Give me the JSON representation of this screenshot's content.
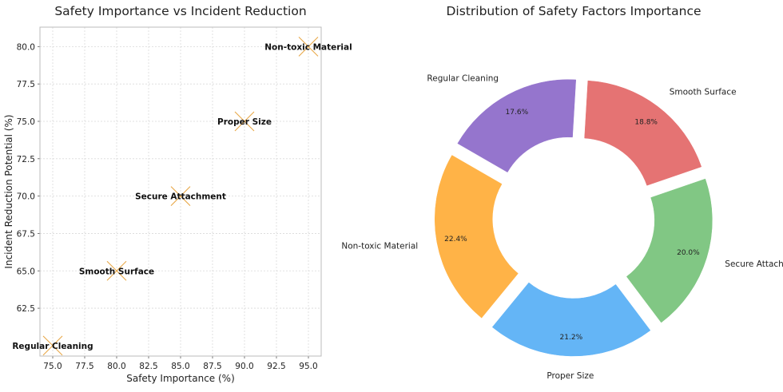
{
  "chart_data": [
    {
      "type": "scatter",
      "title": "Safety Importance vs Incident Reduction",
      "xlabel": "Safety Importance (%)",
      "ylabel": "Incident Reduction Potential (%)",
      "xlim": [
        74.0,
        96.0
      ],
      "ylim": [
        59.3,
        81.3
      ],
      "xticks": [
        75.0,
        77.5,
        80.0,
        82.5,
        85.0,
        87.5,
        90.0,
        92.5,
        95.0
      ],
      "yticks": [
        62.5,
        65.0,
        67.5,
        70.0,
        72.5,
        75.0,
        77.5,
        80.0
      ],
      "xtick_labels": [
        "75.0",
        "77.5",
        "80.0",
        "82.5",
        "85.0",
        "87.5",
        "90.0",
        "92.5",
        "95.0"
      ],
      "ytick_labels": [
        "62.5",
        "65.0",
        "67.5",
        "70.0",
        "72.5",
        "75.0",
        "77.5",
        "80.0"
      ],
      "grid": true,
      "marker_color": "#e8a848",
      "points": [
        {
          "label": "Regular Cleaning",
          "x": 75,
          "y": 60
        },
        {
          "label": "Smooth Surface",
          "x": 80,
          "y": 65
        },
        {
          "label": "Secure Attachment",
          "x": 85,
          "y": 70
        },
        {
          "label": "Proper Size",
          "x": 90,
          "y": 75
        },
        {
          "label": "Non-toxic Material",
          "x": 95,
          "y": 80
        }
      ]
    },
    {
      "type": "pie",
      "title": "Distribution of Safety Factors Importance",
      "donut": true,
      "exploded": true,
      "slices": [
        {
          "label": "Non-toxic Material",
          "pct_label": "22.4%",
          "value": 22.4,
          "color": "#ffb347"
        },
        {
          "label": "Proper Size",
          "pct_label": "21.2%",
          "value": 21.2,
          "color": "#64b5f6"
        },
        {
          "label": "Secure Attachment",
          "pct_label": "20.0%",
          "value": 20.0,
          "color": "#81c784"
        },
        {
          "label": "Smooth Surface",
          "pct_label": "18.8%",
          "value": 18.8,
          "color": "#e57373"
        },
        {
          "label": "Regular Cleaning",
          "pct_label": "17.6%",
          "value": 17.6,
          "color": "#9575cd"
        }
      ]
    }
  ]
}
